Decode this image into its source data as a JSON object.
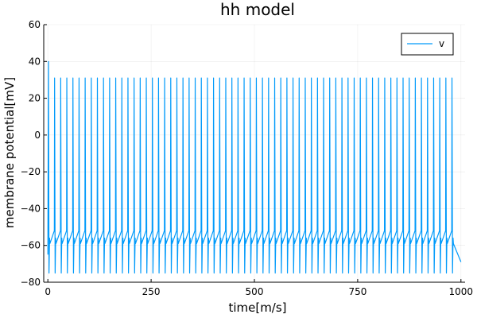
{
  "chart_data": {
    "type": "line",
    "title": "hh model",
    "xlabel": "time[m/s]",
    "ylabel": "membrane potential[mV]",
    "xlim": [
      -10,
      1010
    ],
    "ylim": [
      -80,
      60
    ],
    "xticks": [
      0,
      250,
      500,
      750,
      1000
    ],
    "xtick_labels": [
      "0",
      "250",
      "500",
      "750",
      "1000"
    ],
    "yticks": [
      -80,
      -60,
      -40,
      -20,
      0,
      20,
      40,
      60
    ],
    "ytick_labels": [
      "−80",
      "−60",
      "−40",
      "−20",
      "0",
      "20",
      "40",
      "60"
    ],
    "grid": true,
    "legend": {
      "position": "top-right",
      "entries": [
        "v"
      ]
    },
    "series": [
      {
        "name": "v",
        "color": "#009AFA",
        "initial_value": -65,
        "first_spike_peak": 40,
        "spike_peak": 31,
        "trough": -75,
        "notch": -56,
        "spike_count": 67,
        "first_spike_time": 1.5,
        "interspike_interval": 14.8,
        "end_time": 1000,
        "end_value": -69
      }
    ]
  }
}
